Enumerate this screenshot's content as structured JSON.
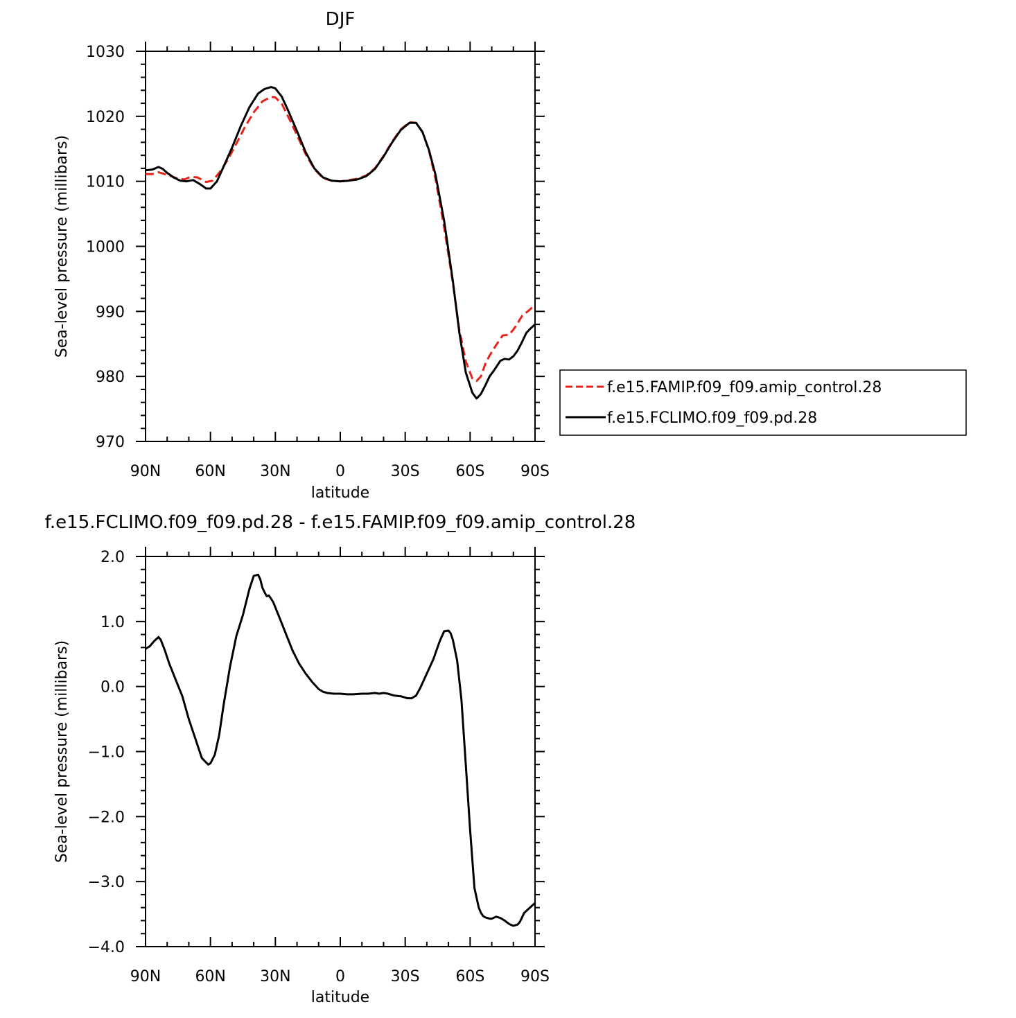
{
  "chart_data": [
    {
      "type": "line",
      "title": "DJF",
      "xlabel": "latitude",
      "ylabel": "Sea-level pressure (millibars)",
      "xlim": [
        90,
        -90
      ],
      "ylim": [
        970,
        1030
      ],
      "x_ticks": [
        90,
        60,
        30,
        0,
        -30,
        -60,
        -90
      ],
      "x_tick_labels": [
        "90N",
        "60N",
        "30N",
        "0",
        "30S",
        "60S",
        "90S"
      ],
      "y_ticks": [
        970,
        980,
        990,
        1000,
        1010,
        1020,
        1030
      ],
      "y_tick_labels": [
        "970",
        "980",
        "990",
        "1000",
        "1010",
        "1020",
        "1030"
      ],
      "grid": false,
      "legend_position": "right",
      "series": [
        {
          "name": "f.e15.FAMIP.f09_f09.amip_control.28",
          "color": "#e8231a",
          "style": "dashed",
          "x": [
            90,
            87,
            84,
            80,
            75,
            72,
            69,
            66,
            62,
            59,
            56,
            52,
            48,
            44,
            40,
            36,
            32,
            30,
            27,
            24,
            20,
            16,
            12,
            8,
            4,
            0,
            -4,
            -8,
            -12,
            -16,
            -20,
            -24,
            -28,
            -32,
            -35,
            -38,
            -41,
            -44,
            -48,
            -52,
            -55,
            -58,
            -61,
            -63,
            -65,
            -67,
            -69,
            -72,
            -75,
            -78,
            -80,
            -82,
            -84,
            -87,
            -90
          ],
          "y": [
            1011.1,
            1011.1,
            1011.4,
            1011.0,
            1010.4,
            1010.3,
            1010.7,
            1010.6,
            1009.9,
            1010.1,
            1011.3,
            1013.3,
            1015.8,
            1018.4,
            1020.6,
            1022.3,
            1023.0,
            1022.9,
            1021.9,
            1019.9,
            1017.1,
            1014.2,
            1011.9,
            1010.5,
            1010.1,
            1010.0,
            1010.2,
            1010.4,
            1010.9,
            1012.0,
            1013.9,
            1016.1,
            1018.0,
            1019.1,
            1019.0,
            1017.6,
            1014.7,
            1010.4,
            1002.9,
            994.4,
            987.2,
            982.3,
            979.7,
            979.3,
            980.0,
            981.9,
            983.2,
            984.8,
            986.3,
            986.4,
            987.2,
            988.2,
            989.3,
            990.1,
            991.0
          ]
        },
        {
          "name": "f.e15.FCLIMO.f09_f09.pd.28",
          "color": "#000000",
          "style": "solid",
          "x": [
            90,
            87,
            84,
            82,
            80,
            77,
            74,
            71,
            68,
            65,
            62,
            60,
            57,
            54,
            50,
            46,
            42,
            38,
            35,
            32,
            30,
            27,
            24,
            20,
            16,
            12,
            8,
            4,
            0,
            -4,
            -8,
            -12,
            -16,
            -20,
            -24,
            -28,
            -32,
            -35,
            -38,
            -41,
            -44,
            -48,
            -52,
            -55,
            -58,
            -61,
            -63,
            -65,
            -67,
            -69,
            -71,
            -74,
            -76,
            -78,
            -80,
            -82,
            -84,
            -86,
            -88,
            -90
          ],
          "y": [
            1011.7,
            1011.8,
            1012.2,
            1011.9,
            1011.3,
            1010.6,
            1010.1,
            1010.0,
            1010.2,
            1009.6,
            1008.9,
            1008.9,
            1010.0,
            1012.2,
            1015.2,
            1018.5,
            1021.4,
            1023.5,
            1024.2,
            1024.5,
            1024.3,
            1023.0,
            1020.8,
            1017.7,
            1014.5,
            1012.0,
            1010.6,
            1010.1,
            1010.0,
            1010.1,
            1010.3,
            1010.8,
            1011.9,
            1013.8,
            1016.0,
            1017.9,
            1019.0,
            1019.0,
            1017.6,
            1014.8,
            1011.0,
            1003.9,
            994.7,
            986.8,
            980.6,
            977.5,
            976.6,
            977.3,
            978.6,
            980.0,
            980.9,
            982.4,
            982.7,
            982.6,
            983.1,
            984.0,
            985.3,
            986.7,
            987.4,
            988.0
          ]
        }
      ]
    },
    {
      "type": "line",
      "title": "f.e15.FCLIMO.f09_f09.pd.28 - f.e15.FAMIP.f09_f09.amip_control.28",
      "xlabel": "latitude",
      "ylabel": "Sea-level pressure (millibars)",
      "xlim": [
        90,
        -90
      ],
      "ylim": [
        -4.0,
        2.0
      ],
      "x_ticks": [
        90,
        60,
        30,
        0,
        -30,
        -60,
        -90
      ],
      "x_tick_labels": [
        "90N",
        "60N",
        "30N",
        "0",
        "30S",
        "60S",
        "90S"
      ],
      "y_ticks": [
        -4.0,
        -3.0,
        -2.0,
        -1.0,
        0.0,
        1.0,
        2.0
      ],
      "y_tick_labels": [
        "−4.0",
        "−3.0",
        "−2.0",
        "−1.0",
        "0.0",
        "1.0",
        "2.0"
      ],
      "grid": false,
      "series": [
        {
          "color": "#000000",
          "style": "solid",
          "x": [
            90,
            88,
            86,
            84,
            83,
            81,
            79,
            76,
            73,
            70,
            67,
            64,
            61,
            60,
            58,
            56,
            54,
            51,
            48,
            45,
            42,
            40,
            38,
            37,
            36,
            35,
            34,
            33,
            31,
            28,
            25,
            22,
            19,
            16,
            13,
            10,
            8,
            6,
            3,
            0,
            -3,
            -6,
            -10,
            -13,
            -16,
            -18,
            -20,
            -22,
            -25,
            -28,
            -31,
            -33,
            -35,
            -37,
            -40,
            -43,
            -46,
            -48,
            -50,
            -51,
            -52,
            -54,
            -56,
            -58,
            -60,
            -62,
            -64,
            -65,
            -66,
            -67,
            -68,
            -69,
            -70,
            -72,
            -74,
            -76,
            -78,
            -80,
            -81,
            -82,
            -83,
            -84,
            -85,
            -87,
            -89,
            -90
          ],
          "y": [
            0.58,
            0.62,
            0.7,
            0.76,
            0.72,
            0.55,
            0.35,
            0.1,
            -0.15,
            -0.5,
            -0.8,
            -1.1,
            -1.2,
            -1.18,
            -1.05,
            -0.75,
            -0.3,
            0.3,
            0.78,
            1.1,
            1.5,
            1.7,
            1.72,
            1.65,
            1.52,
            1.45,
            1.39,
            1.4,
            1.3,
            1.05,
            0.8,
            0.55,
            0.35,
            0.2,
            0.07,
            -0.04,
            -0.08,
            -0.1,
            -0.11,
            -0.11,
            -0.12,
            -0.12,
            -0.11,
            -0.11,
            -0.1,
            -0.11,
            -0.1,
            -0.11,
            -0.14,
            -0.15,
            -0.18,
            -0.18,
            -0.14,
            -0.02,
            0.2,
            0.42,
            0.7,
            0.85,
            0.86,
            0.82,
            0.72,
            0.4,
            -0.2,
            -1.2,
            -2.2,
            -3.1,
            -3.4,
            -3.48,
            -3.53,
            -3.55,
            -3.56,
            -3.57,
            -3.57,
            -3.54,
            -3.56,
            -3.6,
            -3.65,
            -3.68,
            -3.67,
            -3.66,
            -3.62,
            -3.55,
            -3.48,
            -3.42,
            -3.36,
            -3.33
          ]
        }
      ]
    }
  ]
}
